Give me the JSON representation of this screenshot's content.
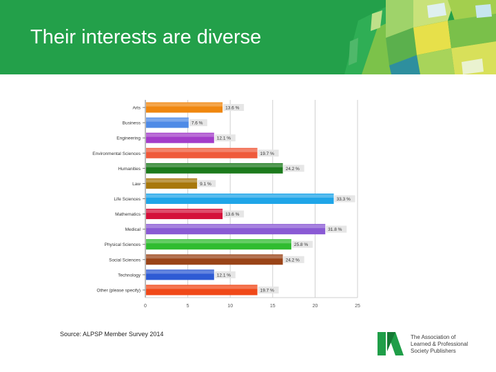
{
  "slide": {
    "title": "Their interests are diverse",
    "source": "Source: ALPSP Member Survey 2014"
  },
  "logo": {
    "name": "alpsp-logo",
    "lines": [
      "The Association of",
      "Learned & Professional",
      "Society Publishers"
    ],
    "color": "#1f9e48"
  },
  "colors": {
    "header": "#23a04a",
    "label_box": "#e6e6e6"
  },
  "chart_data": {
    "type": "bar",
    "orientation": "horizontal",
    "categories": [
      "Arts",
      "Business",
      "Engineering",
      "Environmental Sciences",
      "Humanities",
      "Law",
      "Life Sciences",
      "Mathematics",
      "Medical",
      "Physical Sciences",
      "Social Sciences",
      "Technology",
      "Other (please specify)"
    ],
    "values": [
      9.1,
      5.1,
      8.1,
      13.2,
      16.2,
      6.1,
      22.2,
      9.1,
      21.2,
      17.2,
      16.2,
      8.1,
      13.2
    ],
    "data_labels": [
      "13.6 %",
      "7.6 %",
      "12.1 %",
      "19.7 %",
      "24.2 %",
      "9.1 %",
      "33.3 %",
      "13.6 %",
      "31.8 %",
      "25.8 %",
      "24.2 %",
      "12.1 %",
      "19.7 %"
    ],
    "bar_colors": [
      "#f0870f",
      "#4f8be6",
      "#a33cc9",
      "#ef5a3b",
      "#1c7a1c",
      "#a8780c",
      "#1fa5e8",
      "#d4113a",
      "#8a5ad4",
      "#30bc30",
      "#9a4418",
      "#2e5bd4",
      "#f04818"
    ],
    "xlim": [
      0,
      25
    ],
    "xticks": [
      0,
      5,
      10,
      15,
      20,
      25
    ],
    "grid": true,
    "xlabel": "",
    "ylabel": ""
  }
}
